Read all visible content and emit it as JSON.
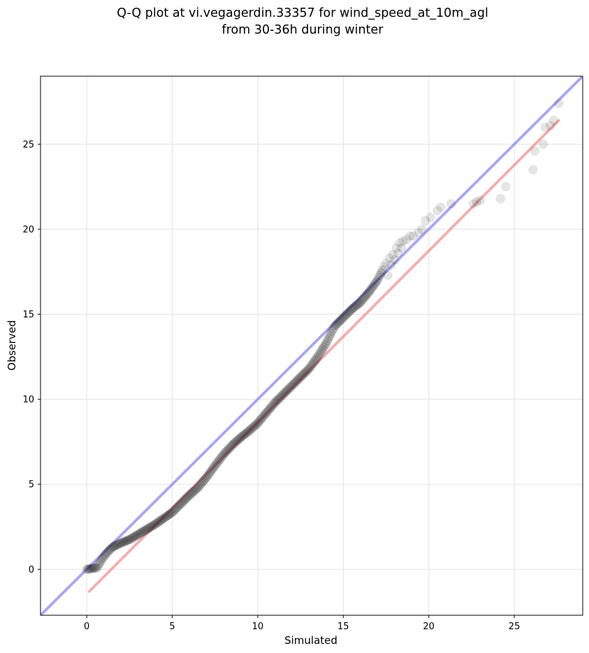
{
  "chart_data": {
    "type": "scatter",
    "title": [
      "Q-Q plot at vi.vegagerdin.33357 for wind_speed_at_10m_agl",
      "from 30-36h during winter"
    ],
    "xlabel": "Simulated",
    "ylabel": "Observed",
    "xlim": [
      -2.7,
      29.0
    ],
    "ylim": [
      -2.7,
      29.0
    ],
    "xticks": [
      0,
      5,
      10,
      15,
      20,
      25
    ],
    "yticks": [
      0,
      5,
      10,
      15,
      20,
      25
    ],
    "grid": true,
    "legend": "none",
    "reference_lines": [
      {
        "kind": "identity",
        "color": "#7777ee",
        "x": [
          -2.7,
          29.0
        ],
        "y": [
          -2.7,
          29.0
        ]
      },
      {
        "kind": "fit",
        "color": "#f08080",
        "x": [
          0.15,
          27.6
        ],
        "y": [
          -1.3,
          26.4
        ]
      }
    ],
    "point_color": "#000000",
    "quantile_curve": {
      "x": [
        0.0,
        0.3,
        0.6,
        0.9,
        1.2,
        1.5,
        2.0,
        2.5,
        3.0,
        3.5,
        4.0,
        4.5,
        5.0,
        5.5,
        6.0,
        6.5,
        7.0,
        7.5,
        8.0,
        8.5,
        9.0,
        9.5,
        10.0,
        10.5,
        11.0,
        11.5,
        12.0,
        12.5,
        13.0,
        13.5,
        14.0,
        14.5,
        15.0,
        15.5,
        16.0,
        16.5,
        17.0,
        17.3
      ],
      "y": [
        0.0,
        0.05,
        0.1,
        0.6,
        1.0,
        1.3,
        1.55,
        1.75,
        2.05,
        2.35,
        2.65,
        3.0,
        3.35,
        3.85,
        4.35,
        4.8,
        5.4,
        6.1,
        6.75,
        7.3,
        7.75,
        8.15,
        8.6,
        9.2,
        9.8,
        10.3,
        10.8,
        11.3,
        11.8,
        12.5,
        13.3,
        14.3,
        14.8,
        15.3,
        15.7,
        16.3,
        17.0,
        17.6
      ]
    },
    "tail_points": {
      "x": [
        17.4,
        17.5,
        17.6,
        17.7,
        17.8,
        17.9,
        18.0,
        18.1,
        18.2,
        18.3,
        18.4,
        18.5,
        18.7,
        18.9,
        19.1,
        19.4,
        19.6,
        19.8,
        20.1,
        20.5,
        20.7,
        21.3,
        22.6,
        22.8,
        23.0,
        24.2,
        24.5,
        26.1,
        26.2,
        26.7,
        26.8,
        27.1,
        27.3,
        27.6
      ],
      "y": [
        17.8,
        18.0,
        17.3,
        18.3,
        17.9,
        18.5,
        18.2,
        18.9,
        18.6,
        19.2,
        18.9,
        19.3,
        19.4,
        19.6,
        19.6,
        19.8,
        20.0,
        20.5,
        20.7,
        21.1,
        21.3,
        21.5,
        21.5,
        21.6,
        21.7,
        21.8,
        22.5,
        23.5,
        24.6,
        25.0,
        26.0,
        26.1,
        26.4,
        27.4
      ]
    }
  }
}
